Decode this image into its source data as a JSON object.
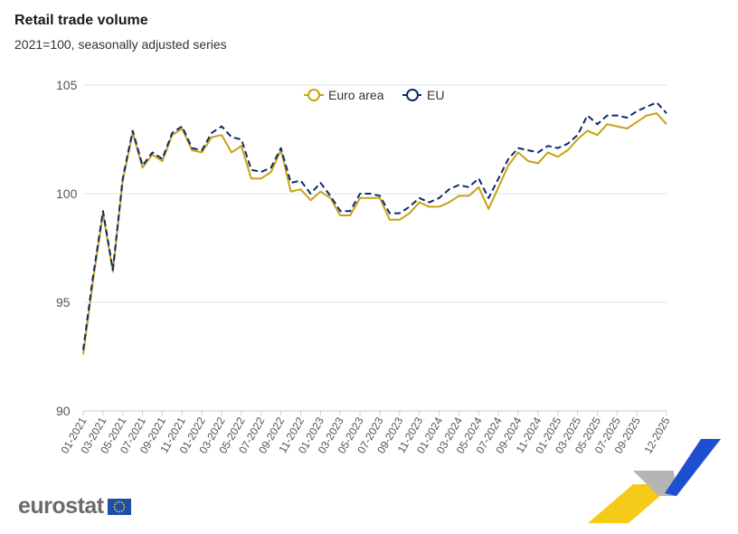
{
  "title": "Retail trade volume",
  "subtitle": "2021=100, seasonally adjusted series",
  "logo": {
    "text": "eurostat",
    "icon": "eu-flag-icon"
  },
  "colors": {
    "euro_area": "#c8a214",
    "eu": "#0c2a6b",
    "grid": "#dde5f0",
    "flag": "#1f4ea8",
    "flag_stars": "#ffd617"
  },
  "chart_data": {
    "type": "line",
    "title": "Retail trade volume",
    "subtitle": "2021=100, seasonally adjusted series",
    "ylim": [
      90,
      105
    ],
    "yticks": [
      90,
      95,
      100,
      105
    ],
    "grid": true,
    "legend_placement": "top-center",
    "x": [
      "01-2021",
      "02-2021",
      "03-2021",
      "04-2021",
      "05-2021",
      "06-2021",
      "07-2021",
      "08-2021",
      "09-2021",
      "10-2021",
      "11-2021",
      "12-2021",
      "01-2022",
      "02-2022",
      "03-2022",
      "04-2022",
      "05-2022",
      "06-2022",
      "07-2022",
      "08-2022",
      "09-2022",
      "10-2022",
      "11-2022",
      "12-2022",
      "01-2023",
      "02-2023",
      "03-2023",
      "04-2023",
      "05-2023",
      "06-2023",
      "07-2023",
      "08-2023",
      "09-2023",
      "10-2023",
      "11-2023",
      "12-2023",
      "01-2024",
      "02-2024",
      "03-2024",
      "04-2024",
      "05-2024",
      "06-2024",
      "07-2024",
      "08-2024",
      "09-2024",
      "10-2024",
      "11-2024",
      "12-2024",
      "01-2025",
      "02-2025",
      "03-2025",
      "04-2025",
      "05-2025",
      "06-2025",
      "07-2025",
      "08-2025",
      "09-2025",
      "10-2025",
      "11-2025",
      "12-2025"
    ],
    "xtick_labels": [
      "01-2021",
      "03-2021",
      "05-2021",
      "07-2021",
      "09-2021",
      "11-2021",
      "01-2022",
      "03-2022",
      "05-2022",
      "07-2022",
      "09-2022",
      "11-2022",
      "01-2023",
      "03-2023",
      "05-2023",
      "07-2023",
      "09-2023",
      "11-2023",
      "01-2024",
      "03-2024",
      "05-2024",
      "07-2024",
      "09-2024",
      "11-2024",
      "01-2025",
      "03-2025",
      "05-2025",
      "07-2025",
      "09-2025",
      "12-2025"
    ],
    "series": [
      {
        "name": "Euro area",
        "color": "#c8a214",
        "style": "solid",
        "values": [
          92.6,
          96.0,
          99.1,
          96.4,
          100.6,
          102.8,
          101.2,
          101.8,
          101.5,
          102.7,
          103.0,
          102.0,
          101.9,
          102.6,
          102.7,
          101.9,
          102.2,
          100.7,
          100.7,
          101.0,
          102.0,
          100.1,
          100.2,
          99.7,
          100.1,
          99.8,
          99.0,
          99.0,
          99.8,
          99.8,
          99.8,
          98.8,
          98.8,
          99.1,
          99.6,
          99.4,
          99.4,
          99.6,
          99.9,
          99.9,
          100.3,
          99.3,
          100.3,
          101.3,
          101.9,
          101.5,
          101.4,
          101.9,
          101.7,
          102.0,
          102.5,
          102.9,
          102.7,
          103.2,
          103.1,
          103.0,
          103.3,
          103.6,
          103.7,
          103.2
        ]
      },
      {
        "name": "EU",
        "color": "#0c2a6b",
        "style": "dashed",
        "values": [
          92.8,
          96.2,
          99.2,
          96.5,
          100.7,
          102.9,
          101.3,
          101.9,
          101.6,
          102.8,
          103.1,
          102.1,
          102.0,
          102.8,
          103.1,
          102.6,
          102.5,
          101.1,
          101.0,
          101.2,
          102.1,
          100.5,
          100.6,
          100.0,
          100.5,
          99.9,
          99.2,
          99.2,
          100.0,
          100.0,
          99.9,
          99.1,
          99.1,
          99.4,
          99.8,
          99.6,
          99.8,
          100.2,
          100.4,
          100.3,
          100.7,
          99.8,
          100.7,
          101.6,
          102.1,
          102.0,
          101.9,
          102.2,
          102.1,
          102.3,
          102.7,
          103.6,
          103.2,
          103.6,
          103.6,
          103.5,
          103.8,
          104.0,
          104.2,
          103.7
        ]
      }
    ]
  }
}
